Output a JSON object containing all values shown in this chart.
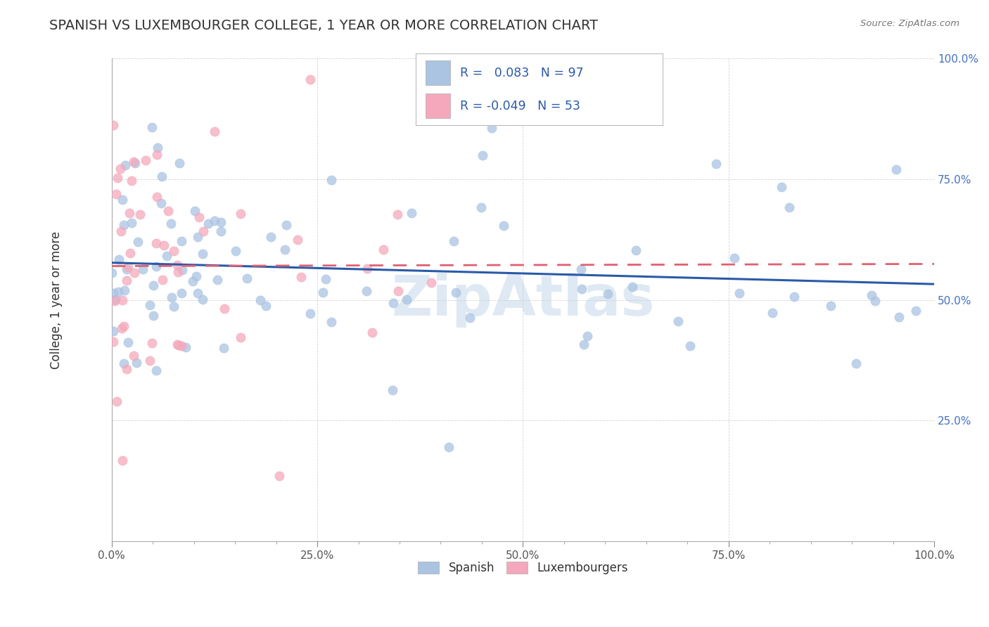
{
  "title": "SPANISH VS LUXEMBOURGER COLLEGE, 1 YEAR OR MORE CORRELATION CHART",
  "source": "Source: ZipAtlas.com",
  "ylabel": "College, 1 year or more",
  "spanish_R": 0.083,
  "spanish_N": 97,
  "lux_R": -0.049,
  "lux_N": 53,
  "spanish_color": "#aac4e2",
  "lux_color": "#f5a8bc",
  "spanish_line_color": "#2a5aa8",
  "lux_line_color": "#e06070",
  "background_color": "#ffffff",
  "grid_color": "#d0d0d0",
  "watermark": "ZipAtlas",
  "legend_color": "#2a5aa8",
  "title_color": "#333333",
  "tick_color": "#4472c4",
  "axis_label_color": "#333333"
}
